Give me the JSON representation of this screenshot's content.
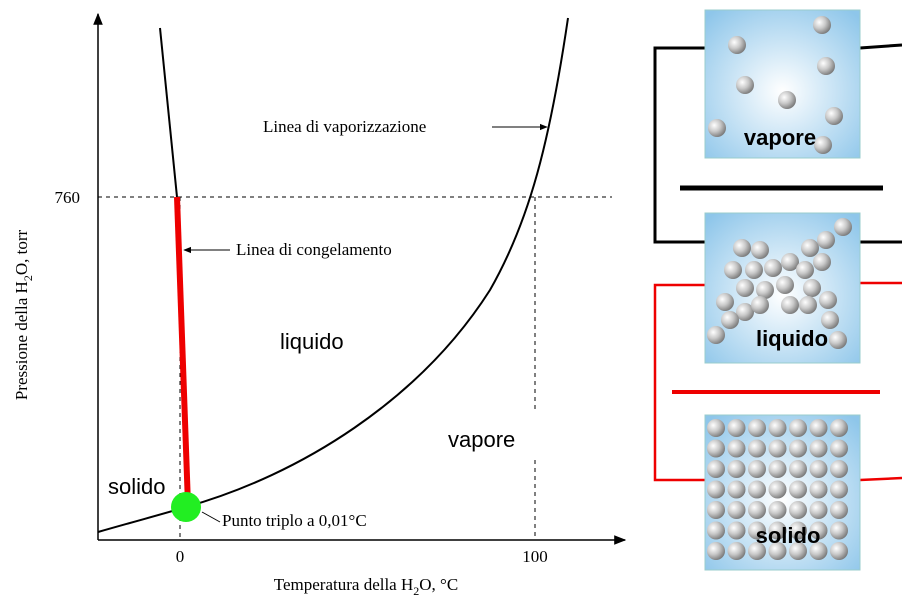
{
  "axes": {
    "y_label": {
      "before": "Pressione della H",
      "sub": "2",
      "after": "O, torr"
    },
    "x_label": {
      "before": "Temperatura della H",
      "sub": "2",
      "after": "O, °C"
    },
    "y_tick": "760",
    "x_ticks": [
      "0",
      "100"
    ]
  },
  "annotations": {
    "vaporization": "Linea di vaporizzazione",
    "freezing": "Linea di congelamento",
    "triple_point": "Punto triplo a 0,01°C"
  },
  "regions": {
    "liquid": "liquido",
    "solid": "solido",
    "vapor": "vapore"
  },
  "boxes": {
    "vapor": "vapore",
    "liquid": "liquido",
    "solid": "solido"
  }
}
